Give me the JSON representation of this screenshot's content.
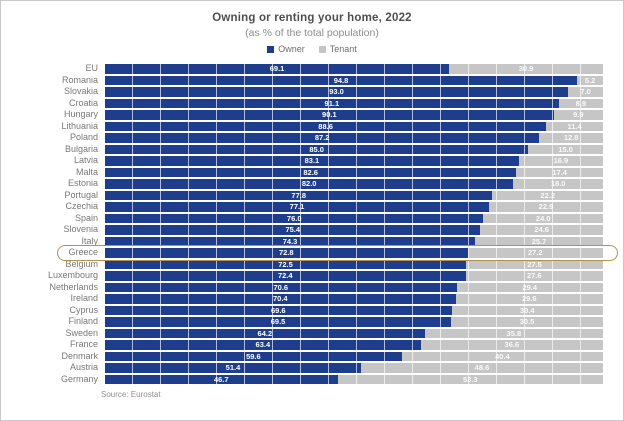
{
  "header": {
    "title": "Owning or renting your home, 2022",
    "subtitle": "(as % of the total population)"
  },
  "source": "Source: Eurostat",
  "colors": {
    "owner": "#1e3d8c",
    "tenant": "#c6c6c6",
    "highlight_border": "#b5924c"
  },
  "chart_data": {
    "type": "bar",
    "orientation": "horizontal",
    "stacked": true,
    "title": "Owning or renting your home, 2022",
    "subtitle": "(as % of the total population)",
    "xlim": [
      0,
      100
    ],
    "legend_position": "top",
    "grid": "vertical-white-lines",
    "value_label_format": "one-decimal",
    "highlight_country": "Greece",
    "categories": [
      "EU",
      "Romania",
      "Slovakia",
      "Croatia",
      "Hungary",
      "Lithuania",
      "Poland",
      "Bulgaria",
      "Latvia",
      "Malta",
      "Estonia",
      "Portugal",
      "Czechia",
      "Spain",
      "Slovenia",
      "Italy",
      "Greece",
      "Belgium",
      "Luxembourg",
      "Netherlands",
      "Ireland",
      "Cyprus",
      "Finland",
      "Sweden",
      "France",
      "Denmark",
      "Austria",
      "Germany"
    ],
    "series": [
      {
        "name": "Owner",
        "color": "#1e3d8c",
        "values": [
          69.1,
          94.8,
          93.0,
          91.1,
          90.1,
          88.6,
          87.2,
          85.0,
          83.1,
          82.6,
          82.0,
          77.8,
          77.1,
          76.0,
          75.4,
          74.3,
          72.8,
          72.5,
          72.4,
          70.6,
          70.4,
          69.6,
          69.5,
          64.2,
          63.4,
          59.6,
          51.4,
          46.7
        ]
      },
      {
        "name": "Tenant",
        "color": "#c6c6c6",
        "values": [
          30.9,
          5.2,
          7.0,
          8.9,
          9.9,
          11.4,
          12.8,
          15.0,
          16.9,
          17.4,
          18.0,
          22.2,
          22.9,
          24.0,
          24.6,
          25.7,
          27.2,
          27.5,
          27.6,
          29.4,
          29.6,
          30.4,
          30.5,
          35.8,
          36.6,
          40.4,
          48.6,
          53.3
        ]
      }
    ]
  }
}
